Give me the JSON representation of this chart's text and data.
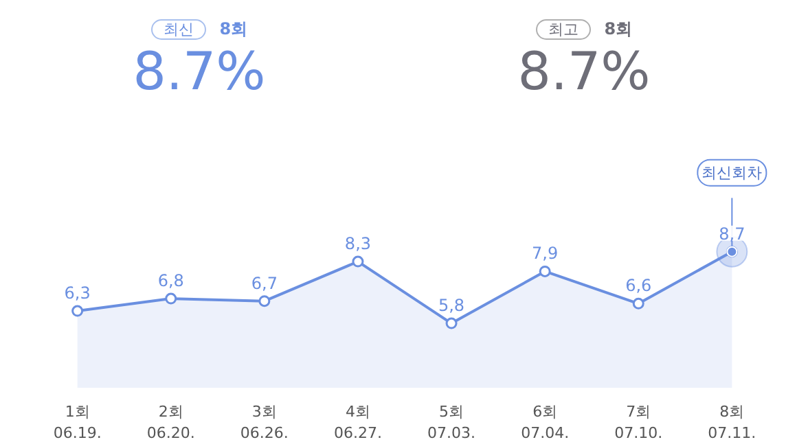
{
  "chart_data": {
    "type": "area",
    "categories": [
      "1회\n06.19.",
      "2회\n06.20.",
      "3회\n06.26.",
      "4회\n06.27.",
      "5회\n07.03.",
      "6회\n07.04.",
      "7회\n07.10.",
      "8회\n07.11."
    ],
    "series": [
      {
        "color": "#6a8fe0",
        "values": [
          6.3,
          6.8,
          6.7,
          8.3,
          5.8,
          7.9,
          6.6,
          8.7
        ],
        "value_labels": [
          "6,3",
          "6,8",
          "6,7",
          "8,3",
          "5,8",
          "7,9",
          "6,6",
          "8,7"
        ]
      }
    ],
    "marker": "circle",
    "tick_labels": "x",
    "annotations": [
      "최신",
      "8회",
      "8.7%",
      "최고",
      "8회",
      "8.7%",
      {
        "text": "최신회차",
        "x": "8회\n07.11.",
        "y": 8.7
      }
    ]
  }
}
